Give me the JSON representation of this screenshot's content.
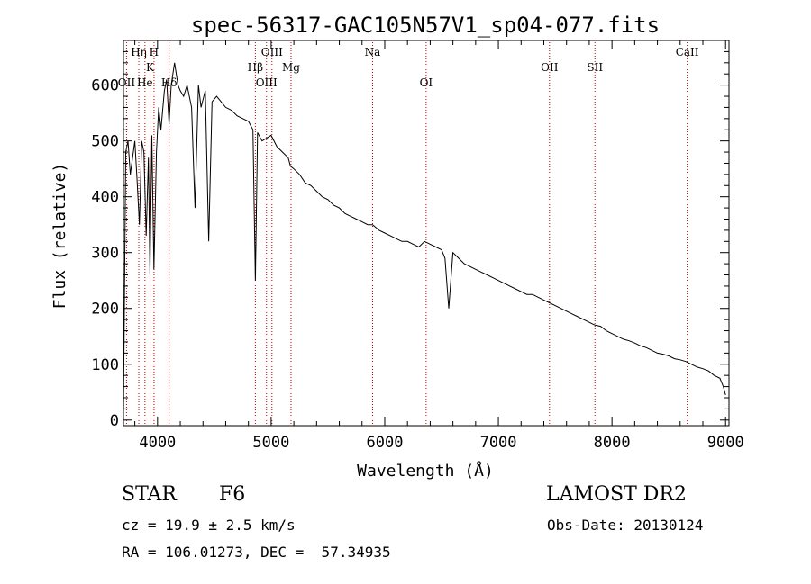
{
  "chart_data": {
    "type": "line",
    "title": "spec-56317-GAC105N57V1_sp04-077.fits",
    "xlabel": "Wavelength (Å)",
    "ylabel": "Flux (relative)",
    "xlim": [
      3700,
      9030
    ],
    "ylim": [
      -10,
      680
    ],
    "x_ticks": [
      4000,
      5000,
      6000,
      7000,
      8000,
      9000
    ],
    "y_ticks": [
      0,
      100,
      200,
      300,
      400,
      500,
      600
    ],
    "grid": false,
    "colors": {
      "spectrum": "#000000",
      "line_marker": "#c00000"
    },
    "series": [
      {
        "x": [
          3700,
          3720,
          3740,
          3760,
          3780,
          3800,
          3820,
          3840,
          3860,
          3880,
          3900,
          3920,
          3933,
          3950,
          3968,
          3990,
          4010,
          4030,
          4060,
          4080,
          4101,
          4120,
          4150,
          4180,
          4200,
          4230,
          4260,
          4300,
          4330,
          4360,
          4383,
          4420,
          4450,
          4480,
          4520,
          4560,
          4600,
          4650,
          4700,
          4750,
          4800,
          4840,
          4861,
          4880,
          4920,
          4960,
          5000,
          5050,
          5100,
          5150,
          5170,
          5200,
          5250,
          5300,
          5350,
          5400,
          5450,
          5500,
          5550,
          5600,
          5650,
          5700,
          5750,
          5800,
          5850,
          5893,
          5950,
          6000,
          6050,
          6100,
          6150,
          6200,
          6250,
          6300,
          6350,
          6400,
          6450,
          6500,
          6530,
          6563,
          6600,
          6650,
          6700,
          6750,
          6800,
          6850,
          6900,
          6950,
          7000,
          7050,
          7100,
          7150,
          7200,
          7250,
          7300,
          7350,
          7400,
          7450,
          7500,
          7550,
          7600,
          7650,
          7700,
          7750,
          7800,
          7850,
          7900,
          7950,
          8000,
          8050,
          8100,
          8150,
          8200,
          8250,
          8300,
          8350,
          8400,
          8450,
          8500,
          8550,
          8600,
          8650,
          8700,
          8750,
          8800,
          8850,
          8900,
          8950,
          8980,
          9000
        ],
        "y": [
          10,
          480,
          500,
          440,
          470,
          500,
          430,
          350,
          500,
          480,
          330,
          470,
          260,
          510,
          270,
          480,
          560,
          520,
          590,
          610,
          530,
          600,
          640,
          600,
          590,
          580,
          600,
          560,
          380,
          600,
          560,
          590,
          320,
          570,
          580,
          570,
          560,
          555,
          545,
          540,
          535,
          520,
          250,
          515,
          500,
          505,
          510,
          490,
          480,
          470,
          455,
          450,
          440,
          425,
          420,
          410,
          400,
          395,
          385,
          380,
          370,
          365,
          360,
          355,
          350,
          350,
          340,
          335,
          330,
          325,
          320,
          320,
          315,
          310,
          320,
          315,
          310,
          305,
          290,
          200,
          300,
          290,
          280,
          275,
          270,
          265,
          260,
          255,
          250,
          245,
          240,
          235,
          230,
          225,
          225,
          220,
          215,
          210,
          205,
          200,
          195,
          190,
          185,
          180,
          175,
          170,
          168,
          160,
          155,
          150,
          145,
          142,
          138,
          133,
          130,
          125,
          120,
          118,
          115,
          110,
          108,
          105,
          100,
          95,
          92,
          88,
          80,
          75,
          60,
          45
        ]
      }
    ],
    "line_markers": [
      {
        "label": "OII",
        "wavelength": 3727,
        "row": 3
      },
      {
        "label": "Hη",
        "wavelength": 3835,
        "row": 1
      },
      {
        "label": "He",
        "wavelength": 3889,
        "row": 3
      },
      {
        "label": "K",
        "wavelength": 3934,
        "row": 2
      },
      {
        "label": "H",
        "wavelength": 3969,
        "row": 1
      },
      {
        "label": "Hδ",
        "wavelength": 4102,
        "row": 3
      },
      {
        "label": "Hβ",
        "wavelength": 4861,
        "row": 2
      },
      {
        "label": "OIII",
        "wavelength": 4959,
        "row": 3
      },
      {
        "label": "OIII",
        "wavelength": 5007,
        "row": 1
      },
      {
        "label": "Mg",
        "wavelength": 5175,
        "row": 2
      },
      {
        "label": "Na",
        "wavelength": 5893,
        "row": 1
      },
      {
        "label": "OI",
        "wavelength": 6364,
        "row": 3
      },
      {
        "label": "OII",
        "wavelength": 7450,
        "row": 2
      },
      {
        "label": "SII",
        "wavelength": 7850,
        "row": 2
      },
      {
        "label": "CaII",
        "wavelength": 8662,
        "row": 1
      }
    ]
  },
  "info": {
    "object_class": "STAR",
    "subclass": "F6",
    "survey": "LAMOST DR2",
    "redshift": "cz = 19.9 ± 2.5 km/s",
    "obs_date": "Obs-Date: 20130124",
    "coords": "RA = 106.01273, DEC =  57.34935"
  }
}
